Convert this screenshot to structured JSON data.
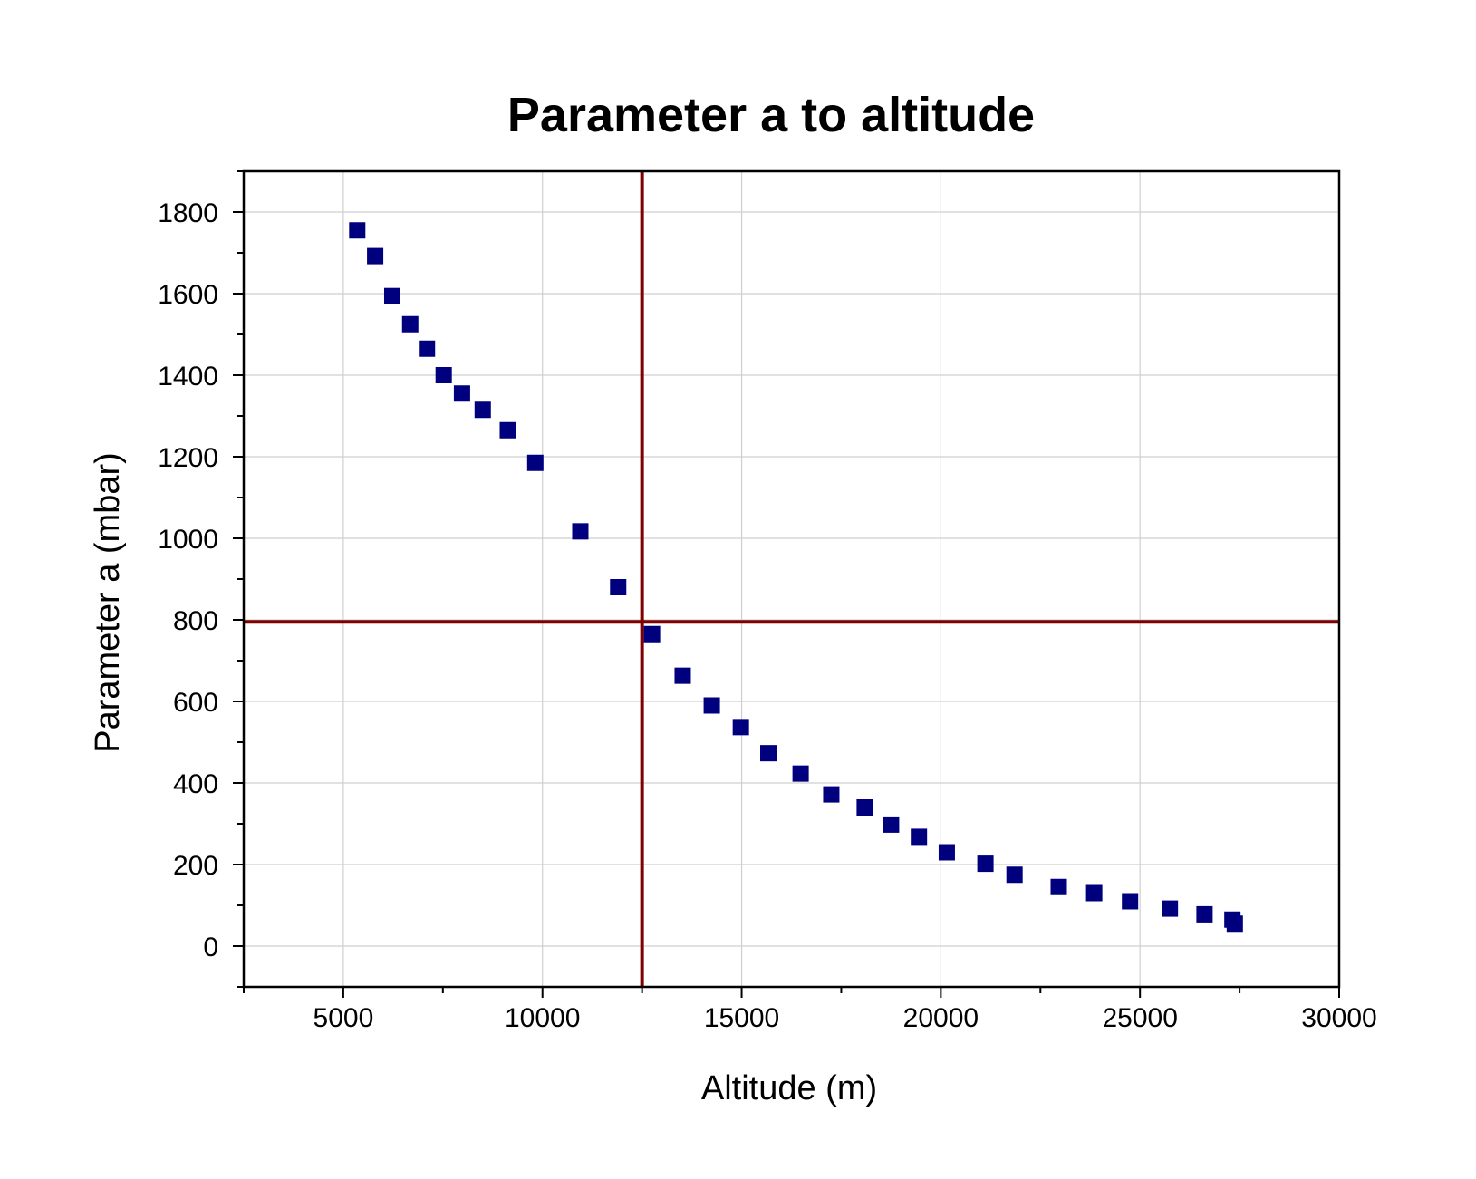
{
  "chart_data": {
    "type": "scatter",
    "title": "Parameter a to altitude",
    "xlabel": "Altitude (m)",
    "ylabel": "Parameter a (mbar)",
    "xlim": [
      2500,
      30000
    ],
    "ylim": [
      -100,
      1900
    ],
    "x_ticks": [
      5000,
      10000,
      15000,
      20000,
      25000,
      30000
    ],
    "x_tick_labels": [
      "5000",
      "10000",
      "15000",
      "20000",
      "25000",
      "30000"
    ],
    "y_ticks": [
      0,
      200,
      400,
      600,
      800,
      1000,
      1200,
      1400,
      1600,
      1800
    ],
    "y_tick_labels": [
      "0",
      "200",
      "400",
      "600",
      "800",
      "1000",
      "1200",
      "1400",
      "1600",
      "1800"
    ],
    "grid": true,
    "marker": "square",
    "marker_color": "#00007f",
    "reference_line_color": "#7f0000",
    "reference_lines": {
      "vertical_x": 12500,
      "horizontal_y": 795
    },
    "series": [
      {
        "name": "Parameter a",
        "x": [
          5350,
          5800,
          6230,
          6680,
          7100,
          7520,
          7980,
          8500,
          9130,
          9820,
          10950,
          11900,
          12750,
          13520,
          14250,
          14980,
          15670,
          16480,
          17250,
          18090,
          18750,
          19450,
          20150,
          21120,
          21850,
          22960,
          23850,
          24750,
          25750,
          26620,
          27320,
          27380
        ],
        "y": [
          1755,
          1692,
          1594,
          1525,
          1465,
          1400,
          1355,
          1315,
          1265,
          1185,
          1017,
          880,
          765,
          663,
          590,
          537,
          473,
          423,
          372,
          340,
          298,
          268,
          230,
          202,
          175,
          145,
          130,
          110,
          92,
          78,
          65,
          55
        ]
      }
    ]
  }
}
